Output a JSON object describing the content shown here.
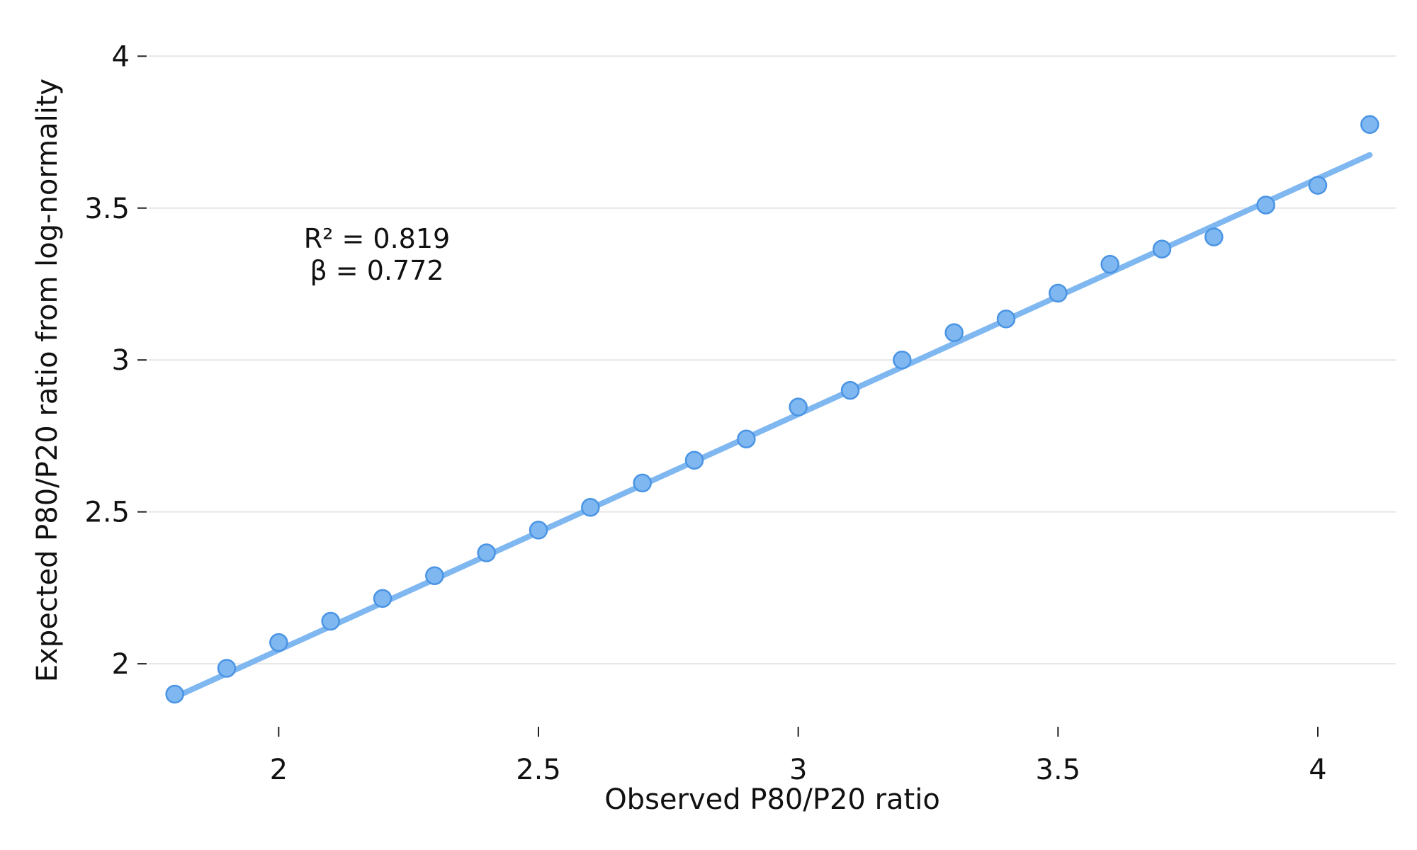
{
  "chart_data": {
    "type": "scatter",
    "title": "",
    "xlabel": "Observed P80/P20 ratio",
    "ylabel": "Expected P80/P20 ratio from log-normality",
    "xlim": [
      1.75,
      4.15
    ],
    "ylim": [
      1.83,
      4.08
    ],
    "x_ticks": [
      2,
      2.5,
      3,
      3.5,
      4
    ],
    "x_tick_labels": [
      "2",
      "2.5",
      "3",
      "3.5",
      "4"
    ],
    "y_ticks": [
      2,
      2.5,
      3,
      3.5,
      4
    ],
    "y_tick_labels": [
      "2",
      "2.5",
      "3",
      "3.5",
      "4"
    ],
    "grid": "horizontal",
    "legend": "none",
    "point_color": "#7fb7f0",
    "point_stroke": "#4a94e4",
    "line_color": "#7fb7f0",
    "series": [
      {
        "x": [
          1.8,
          1.9,
          2.0,
          2.1,
          2.2,
          2.3,
          2.4,
          2.5,
          2.6,
          2.7,
          2.8,
          2.9,
          3.0,
          3.1,
          3.2,
          3.3,
          3.4,
          3.5,
          3.6,
          3.7,
          3.8,
          3.9,
          4.0,
          4.1
        ],
        "y": [
          1.9,
          1.985,
          2.07,
          2.14,
          2.215,
          2.29,
          2.365,
          2.44,
          2.515,
          2.595,
          2.67,
          2.74,
          2.845,
          2.9,
          3.0,
          3.09,
          3.135,
          3.22,
          3.315,
          3.365,
          3.405,
          3.51,
          3.575,
          3.775
        ]
      }
    ],
    "fit_line": {
      "x": [
        1.8,
        4.1
      ],
      "y": [
        1.89,
        3.675
      ]
    },
    "annotations": [
      "R² =  0.819",
      "β =  0.772"
    ]
  }
}
